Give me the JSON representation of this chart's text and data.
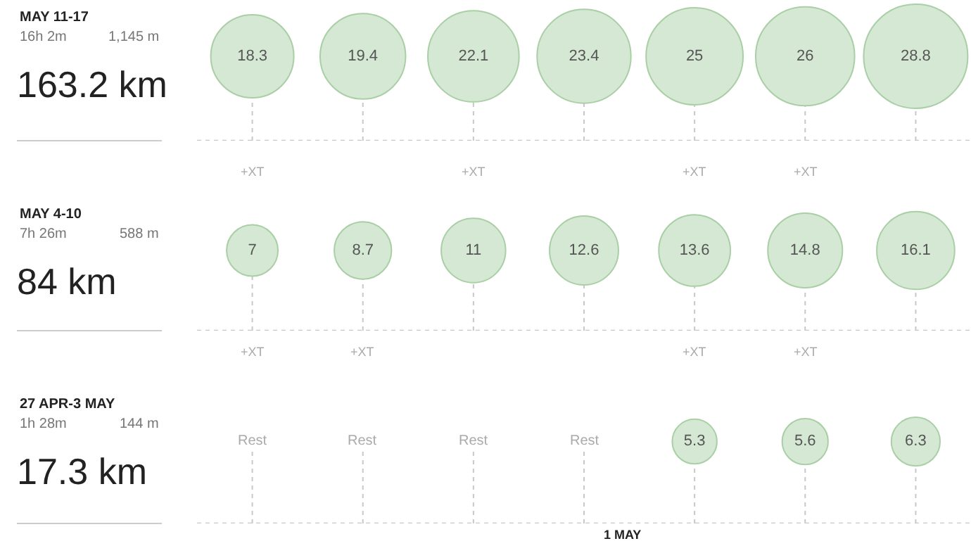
{
  "chart_data": [
    {
      "type": "other",
      "title": "MAY 11-17",
      "annotations": [
        "16h 2m",
        "1,145 m",
        "163.2 km",
        "+XT",
        "+XT",
        "+XT",
        "+XT"
      ],
      "categories": [
        null,
        null,
        null,
        null,
        null,
        null,
        null
      ],
      "values": [
        18.3,
        19.4,
        22.1,
        23.4,
        25,
        26,
        28.8
      ],
      "value_labels": [
        "18.3",
        "19.4",
        "22.1",
        "23.4",
        "25",
        "26",
        "28.8"
      ],
      "color": "#d5e8d4"
    },
    {
      "type": "other",
      "title": "MAY 4-10",
      "annotations": [
        "7h 26m",
        "588 m",
        "84 km",
        "+XT",
        "+XT",
        "+XT",
        "+XT"
      ],
      "categories": [
        null,
        null,
        null,
        null,
        null,
        null,
        null
      ],
      "values": [
        7,
        8.7,
        11,
        12.6,
        13.6,
        14.8,
        16.1
      ],
      "value_labels": [
        "7",
        "8.7",
        "11",
        "12.6",
        "13.6",
        "14.8",
        "16.1"
      ],
      "color": "#d5e8d4"
    },
    {
      "type": "other",
      "title": "27 APR-3 MAY",
      "annotations": [
        "1h 28m",
        "144 m",
        "17.3 km",
        "1 MAY",
        "Rest",
        "Rest",
        "Rest",
        "Rest"
      ],
      "categories": [
        null,
        null,
        null,
        null,
        null,
        null,
        null
      ],
      "values": [
        null,
        null,
        null,
        null,
        5.3,
        5.6,
        6.3
      ],
      "data_labels": true,
      "color": "#d5e8d4"
    }
  ]
}
